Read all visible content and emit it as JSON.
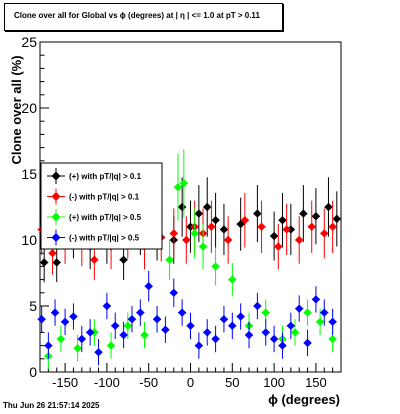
{
  "chart_data": {
    "type": "scatter",
    "title": "Clone  over all for Global vs ϕ (degrees) at |  η  | <= 1.0 at pT > 0.11",
    "xlabel": "ϕ (degrees)",
    "ylabel": "Clone  over all (%)",
    "xlim": [
      -180,
      180
    ],
    "ylim": [
      0,
      25
    ],
    "x_ticks": [
      -150,
      -100,
      -50,
      0,
      50,
      100,
      150
    ],
    "y_ticks": [
      0,
      5,
      10,
      15,
      20,
      25
    ],
    "grid": false,
    "legend_position": "left-middle",
    "series": [
      {
        "name": "(+) with pT/|q| > 0.1",
        "color": "#000000",
        "x": [
          -175,
          -160,
          -140,
          -120,
          -100,
          -80,
          -60,
          -40,
          -20,
          -10,
          0,
          10,
          20,
          30,
          40,
          60,
          80,
          100,
          110,
          120,
          135,
          150,
          165,
          175
        ],
        "y": [
          8.3,
          8.3,
          10.5,
          9.5,
          10.0,
          8.5,
          10.8,
          10.3,
          10.0,
          12.5,
          11.0,
          12.0,
          12.5,
          11.5,
          10.8,
          11.2,
          12.0,
          10.3,
          11.5,
          10.8,
          12.0,
          11.8,
          12.5,
          11.6
        ]
      },
      {
        "name": "(-) with pT/|q| > 0.1",
        "color": "#ff0000",
        "x": [
          -178,
          -165,
          -150,
          -130,
          -115,
          -95,
          -75,
          -55,
          -35,
          -20,
          -5,
          5,
          15,
          25,
          45,
          65,
          85,
          105,
          115,
          130,
          145,
          160,
          170
        ],
        "y": [
          10.8,
          9.0,
          10.0,
          9.8,
          8.5,
          9.5,
          10.5,
          9.5,
          10.2,
          10.5,
          10.0,
          11.0,
          10.5,
          11.0,
          10.0,
          11.5,
          11.0,
          9.5,
          10.8,
          10.0,
          11.0,
          10.5,
          11.0
        ]
      },
      {
        "name": "(+) with pT/|q| > 0.5",
        "color": "#00ff00",
        "x": [
          -170,
          -155,
          -135,
          -115,
          -95,
          -75,
          -55,
          -40,
          -25,
          -15,
          -8,
          5,
          15,
          30,
          50,
          70,
          90,
          110,
          125,
          140,
          155,
          170
        ],
        "y": [
          1.2,
          2.5,
          1.8,
          3.0,
          2.0,
          3.5,
          2.8,
          4.0,
          8.5,
          14.0,
          14.3,
          10.5,
          9.5,
          8.0,
          7.0,
          3.5,
          4.5,
          2.5,
          3.0,
          4.5,
          3.8,
          2.5
        ]
      },
      {
        "name": "(-) with pT/|q| > 0.5",
        "color": "#0000ff",
        "x": [
          -178,
          -170,
          -162,
          -150,
          -140,
          -130,
          -120,
          -110,
          -100,
          -90,
          -80,
          -70,
          -60,
          -50,
          -40,
          -30,
          -20,
          -10,
          0,
          10,
          20,
          30,
          40,
          50,
          60,
          70,
          80,
          90,
          100,
          110,
          120,
          130,
          140,
          150,
          160,
          170
        ],
        "y": [
          4.0,
          2.0,
          4.5,
          3.8,
          4.2,
          2.5,
          3.0,
          1.5,
          5.0,
          3.5,
          2.8,
          4.0,
          4.5,
          6.5,
          4.0,
          3.2,
          6.0,
          4.5,
          3.5,
          2.0,
          3.0,
          2.5,
          4.0,
          3.5,
          4.2,
          2.8,
          5.0,
          3.0,
          2.5,
          2.0,
          3.5,
          4.8,
          2.2,
          5.5,
          4.5,
          3.8
        ]
      }
    ]
  },
  "timestamp": "Thu Jun 26 21:57:14 2025"
}
